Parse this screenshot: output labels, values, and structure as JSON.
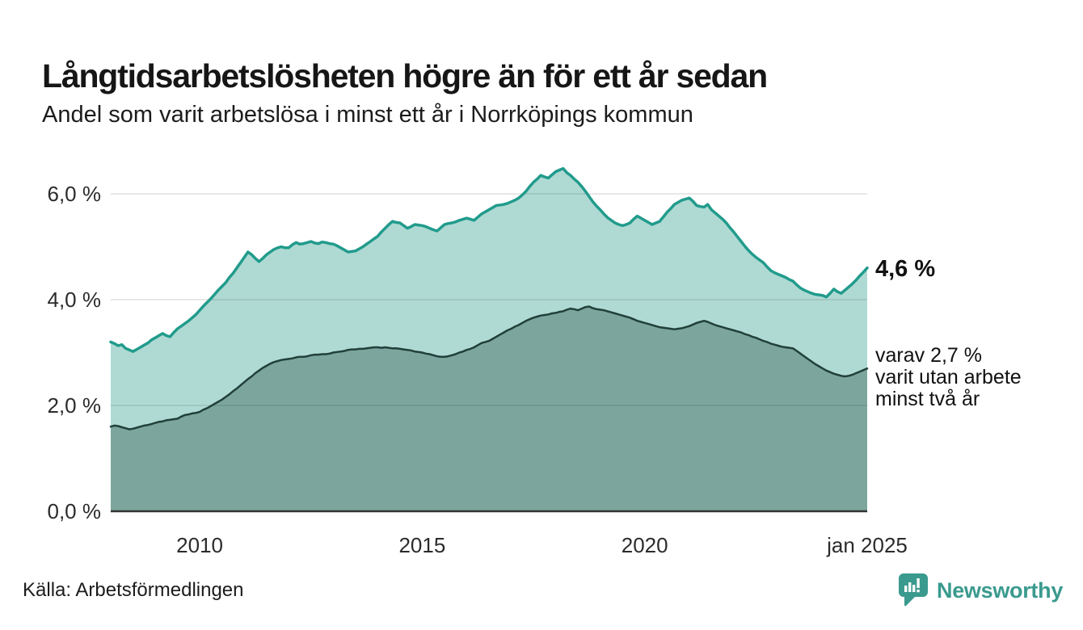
{
  "chart_data": {
    "type": "area",
    "title": "Långtidsarbetslösheten högre än för ett år sedan",
    "subtitle": "Andel som varit arbetslösa i minst ett år i Norrköpings kommun",
    "source": "Källa: Arbetsförmedlingen",
    "grid": true,
    "legend_position": "right-annotations",
    "x_range": [
      2008,
      2025
    ],
    "y_range": [
      0,
      6.7
    ],
    "x_ticks": [
      {
        "t": 2010,
        "label": "2010"
      },
      {
        "t": 2015,
        "label": "2015"
      },
      {
        "t": 2020,
        "label": "2020"
      },
      {
        "t": 2025,
        "label": "jan 2025"
      }
    ],
    "y_ticks": [
      {
        "v": 0,
        "label": "0,0 %"
      },
      {
        "v": 2,
        "label": "2,0 %"
      },
      {
        "v": 4,
        "label": "4,0 %"
      },
      {
        "v": 6,
        "label": "6,0 %"
      }
    ],
    "grid_y": [
      2,
      4,
      6
    ],
    "annotations": {
      "end_label_total": "4,6 %",
      "end_label_subset_lines": [
        "varav 2,7 %",
        "varit utan arbete",
        "minst två år"
      ]
    },
    "series": [
      {
        "id": "arbetslosa-minst-ett-ar",
        "line_color": "#219b8c",
        "fill_color": "#afdad3",
        "line_width": 3.5,
        "start_year": 2008,
        "points_per_year": 12,
        "end_value_label": "4,6 %",
        "values": [
          3.2,
          3.17,
          3.13,
          3.15,
          3.08,
          3.05,
          3.02,
          3.06,
          3.1,
          3.14,
          3.18,
          3.24,
          3.28,
          3.32,
          3.36,
          3.32,
          3.3,
          3.38,
          3.45,
          3.5,
          3.55,
          3.6,
          3.66,
          3.72,
          3.8,
          3.88,
          3.95,
          4.02,
          4.1,
          4.18,
          4.25,
          4.32,
          4.42,
          4.5,
          4.6,
          4.7,
          4.8,
          4.9,
          4.85,
          4.78,
          4.72,
          4.78,
          4.85,
          4.9,
          4.95,
          4.98,
          5.0,
          4.98,
          4.98,
          5.04,
          5.08,
          5.05,
          5.06,
          5.08,
          5.1,
          5.07,
          5.06,
          5.09,
          5.08,
          5.06,
          5.05,
          5.02,
          4.98,
          4.94,
          4.9,
          4.91,
          4.92,
          4.96,
          5.0,
          5.05,
          5.1,
          5.15,
          5.2,
          5.28,
          5.35,
          5.42,
          5.48,
          5.46,
          5.45,
          5.4,
          5.35,
          5.38,
          5.42,
          5.41,
          5.4,
          5.38,
          5.35,
          5.32,
          5.3,
          5.36,
          5.42,
          5.44,
          5.45,
          5.47,
          5.5,
          5.52,
          5.54,
          5.52,
          5.5,
          5.56,
          5.62,
          5.66,
          5.7,
          5.74,
          5.78,
          5.79,
          5.8,
          5.82,
          5.85,
          5.88,
          5.92,
          5.98,
          6.05,
          6.14,
          6.22,
          6.28,
          6.35,
          6.32,
          6.3,
          6.36,
          6.42,
          6.45,
          6.48,
          6.4,
          6.35,
          6.28,
          6.22,
          6.14,
          6.05,
          5.95,
          5.85,
          5.77,
          5.7,
          5.62,
          5.55,
          5.5,
          5.45,
          5.42,
          5.4,
          5.42,
          5.45,
          5.52,
          5.58,
          5.54,
          5.5,
          5.46,
          5.42,
          5.45,
          5.48,
          5.56,
          5.65,
          5.72,
          5.8,
          5.84,
          5.88,
          5.9,
          5.92,
          5.86,
          5.78,
          5.76,
          5.75,
          5.8,
          5.7,
          5.64,
          5.58,
          5.52,
          5.45,
          5.36,
          5.28,
          5.19,
          5.1,
          5.01,
          4.93,
          4.86,
          4.8,
          4.75,
          4.7,
          4.62,
          4.55,
          4.51,
          4.48,
          4.45,
          4.42,
          4.38,
          4.35,
          4.28,
          4.22,
          4.18,
          4.15,
          4.12,
          4.1,
          4.09,
          4.08,
          4.05,
          4.12,
          4.2,
          4.15,
          4.12,
          4.18,
          4.24,
          4.3,
          4.37,
          4.45,
          4.52,
          4.6
        ]
      },
      {
        "id": "utan-arbete-minst-tva-ar",
        "line_color": "#21403a",
        "fill_color": "#7ca69d",
        "line_width": 2.5,
        "start_year": 2008,
        "points_per_year": 12,
        "end_value_label": "2,7 %",
        "values": [
          1.6,
          1.62,
          1.61,
          1.59,
          1.57,
          1.55,
          1.56,
          1.58,
          1.6,
          1.62,
          1.63,
          1.65,
          1.67,
          1.69,
          1.7,
          1.72,
          1.73,
          1.74,
          1.75,
          1.79,
          1.82,
          1.83,
          1.85,
          1.86,
          1.88,
          1.92,
          1.95,
          1.99,
          2.03,
          2.07,
          2.11,
          2.16,
          2.21,
          2.27,
          2.32,
          2.38,
          2.44,
          2.5,
          2.55,
          2.61,
          2.66,
          2.71,
          2.75,
          2.79,
          2.82,
          2.84,
          2.86,
          2.87,
          2.88,
          2.89,
          2.91,
          2.92,
          2.92,
          2.93,
          2.95,
          2.96,
          2.96,
          2.97,
          2.97,
          2.98,
          3.0,
          3.01,
          3.02,
          3.03,
          3.05,
          3.06,
          3.06,
          3.07,
          3.07,
          3.08,
          3.09,
          3.1,
          3.1,
          3.09,
          3.1,
          3.09,
          3.08,
          3.08,
          3.07,
          3.06,
          3.05,
          3.04,
          3.02,
          3.01,
          3.0,
          2.98,
          2.97,
          2.95,
          2.93,
          2.92,
          2.92,
          2.93,
          2.95,
          2.97,
          3.0,
          3.02,
          3.05,
          3.07,
          3.1,
          3.14,
          3.18,
          3.2,
          3.22,
          3.26,
          3.3,
          3.34,
          3.38,
          3.42,
          3.45,
          3.49,
          3.52,
          3.56,
          3.6,
          3.63,
          3.66,
          3.68,
          3.7,
          3.71,
          3.72,
          3.74,
          3.75,
          3.77,
          3.78,
          3.81,
          3.83,
          3.82,
          3.8,
          3.83,
          3.86,
          3.87,
          3.84,
          3.82,
          3.81,
          3.8,
          3.78,
          3.76,
          3.74,
          3.72,
          3.7,
          3.68,
          3.66,
          3.63,
          3.6,
          3.58,
          3.56,
          3.54,
          3.52,
          3.5,
          3.48,
          3.47,
          3.46,
          3.45,
          3.44,
          3.45,
          3.46,
          3.48,
          3.5,
          3.53,
          3.56,
          3.58,
          3.6,
          3.58,
          3.55,
          3.52,
          3.5,
          3.48,
          3.46,
          3.44,
          3.42,
          3.4,
          3.38,
          3.35,
          3.33,
          3.3,
          3.28,
          3.25,
          3.22,
          3.2,
          3.17,
          3.15,
          3.13,
          3.11,
          3.1,
          3.09,
          3.08,
          3.03,
          2.98,
          2.93,
          2.88,
          2.83,
          2.78,
          2.74,
          2.7,
          2.66,
          2.63,
          2.6,
          2.58,
          2.56,
          2.55,
          2.56,
          2.58,
          2.61,
          2.64,
          2.67,
          2.7
        ]
      }
    ]
  },
  "footer": {
    "source": "Källa: Arbetsförmedlingen",
    "brand": "Newsworthy"
  },
  "colors": {
    "accent_teal": "#219b8c",
    "light_fill": "#afdad3",
    "dark_line": "#21403a",
    "dark_fill": "#7ca69d",
    "brand_teal": "#3a9a8e",
    "gridline": "#e3e3e3",
    "baseline": "#333333"
  }
}
